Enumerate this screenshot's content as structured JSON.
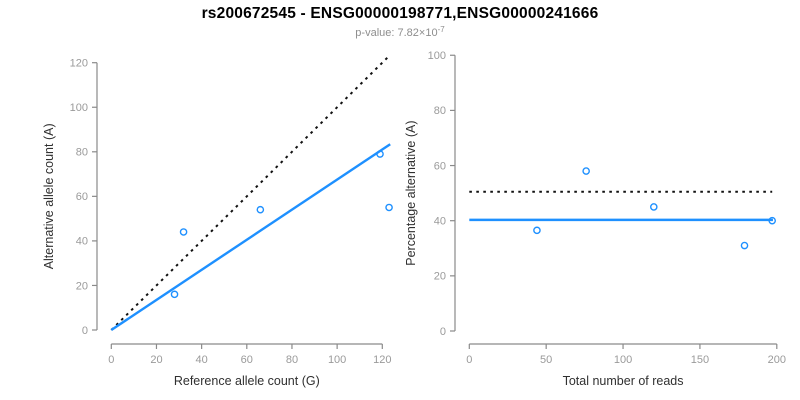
{
  "header": {
    "title": "rs200672545 - ENSG00000198771,ENSG00000241666",
    "pvalue_prefix": "p-value: 7.82×10",
    "pvalue_exponent": "-7"
  },
  "colors": {
    "accent_blue": "#1e90ff",
    "dotted_line_black": "#111111",
    "axis_line_gray": "#8a8a8a",
    "tick_label_gray": "#9a9a9a",
    "axis_title_dark": "#303030",
    "background": "#ffffff"
  },
  "chart_data": [
    {
      "type": "scatter",
      "panel": "left",
      "title": "",
      "xlabel": "Reference allele count (G)",
      "ylabel": "Alternative allele count (A)",
      "xlim": [
        0,
        120
      ],
      "ylim": [
        0,
        120
      ],
      "xticks": [
        0,
        20,
        40,
        60,
        80,
        100,
        120
      ],
      "yticks": [
        0,
        20,
        40,
        60,
        80,
        100,
        120
      ],
      "grid": false,
      "legend_position": "none",
      "points": [
        {
          "x": 28,
          "y": 16
        },
        {
          "x": 32,
          "y": 44
        },
        {
          "x": 66,
          "y": 54
        },
        {
          "x": 119,
          "y": 79
        },
        {
          "x": 123,
          "y": 55
        }
      ],
      "lines": [
        {
          "name": "identity-line",
          "style": "dotted",
          "color_key": "dotted_line_black",
          "x1": 0,
          "y1": 0,
          "x2": 123.5,
          "y2": 123.5
        },
        {
          "name": "fit-line",
          "style": "solid",
          "color_key": "accent_blue",
          "x1": 0,
          "y1": 0,
          "x2": 123.5,
          "y2": 83.4
        }
      ]
    },
    {
      "type": "scatter",
      "panel": "right",
      "title": "",
      "xlabel": "Total number of reads",
      "ylabel": "Percentage alternative (A)",
      "xlim": [
        0,
        200
      ],
      "ylim": [
        0,
        100
      ],
      "xticks": [
        0,
        50,
        100,
        150,
        200
      ],
      "yticks": [
        0,
        20,
        40,
        60,
        80,
        100
      ],
      "grid": false,
      "legend_position": "none",
      "points": [
        {
          "x": 44,
          "y": 36.5
        },
        {
          "x": 76,
          "y": 58
        },
        {
          "x": 120,
          "y": 45
        },
        {
          "x": 179,
          "y": 31
        },
        {
          "x": 197,
          "y": 40
        }
      ],
      "lines": [
        {
          "name": "expected-50pct-line",
          "style": "dotted",
          "color_key": "dotted_line_black",
          "x1": 0,
          "y1": 50.5,
          "x2": 197,
          "y2": 50.5
        },
        {
          "name": "mean-pct-line",
          "style": "solid",
          "color_key": "accent_blue",
          "x1": 0,
          "y1": 40.3,
          "x2": 197.5,
          "y2": 40.3
        }
      ]
    }
  ]
}
